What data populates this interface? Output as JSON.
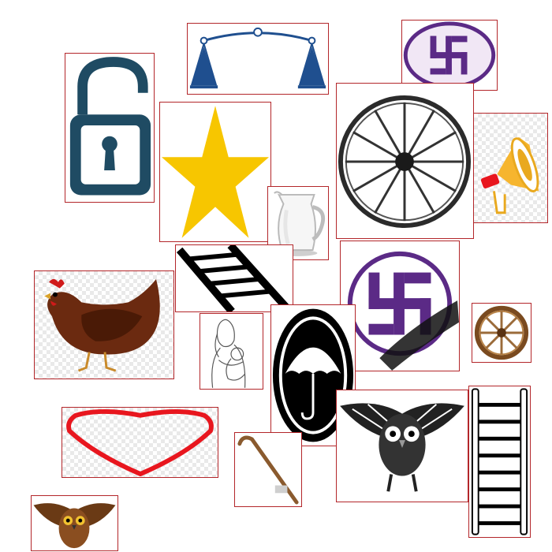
{
  "colors": {
    "tile_border": "#b3262a",
    "lock": "#1f4b63",
    "scales": "#1f4f8f",
    "star": "#f7c600",
    "swastika_purple": "#5b2a86",
    "swastika_ellipse": "#f1e7f5",
    "hen": "#6b2a10",
    "heart": "#e8161e",
    "owl_brown": "#6a3a15",
    "cane": "#8a5a2e",
    "wheel_wood": "#9b6b3a"
  },
  "icons": [
    "unlocked-padlock-icon",
    "balance-scales-icon",
    "swastika-ellipse-icon",
    "star-icon",
    "wagon-wheel-icon",
    "megaphone-icon",
    "milk-jug-icon",
    "ladder-icon",
    "hen-icon",
    "swastika-circle-icon",
    "mother-child-sketch-icon",
    "umbrella-emblem-icon",
    "small-wooden-wheel-icon",
    "heart-outline-icon",
    "walking-cane-icon",
    "owl-spread-wings-icon",
    "vertical-ladder-icon",
    "owl-color-icon"
  ]
}
